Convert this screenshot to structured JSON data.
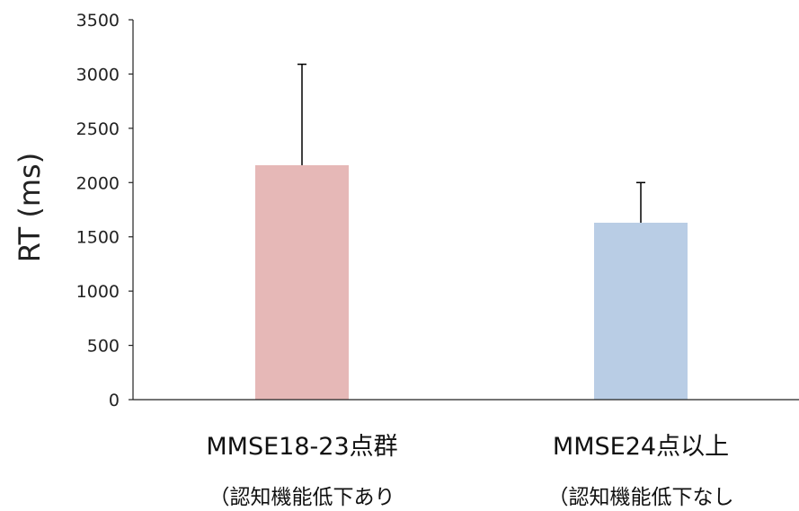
{
  "chart_data": {
    "type": "bar",
    "title": "",
    "xlabel": "",
    "ylabel": "RT (ms)",
    "ylim": [
      0,
      3500
    ],
    "yticks": [
      0,
      500,
      1000,
      1500,
      2000,
      2500,
      3000,
      3500
    ],
    "grid": false,
    "categories": [
      {
        "label": "MMSE18-23点群",
        "sublabel": "（認知機能低下あり"
      },
      {
        "label": "MMSE24点以上",
        "sublabel": "（認知機能低下なし"
      }
    ],
    "values": [
      2160,
      1630
    ],
    "errors": [
      930,
      370
    ],
    "colors": [
      "#e6b8b7",
      "#b9cde5"
    ]
  }
}
